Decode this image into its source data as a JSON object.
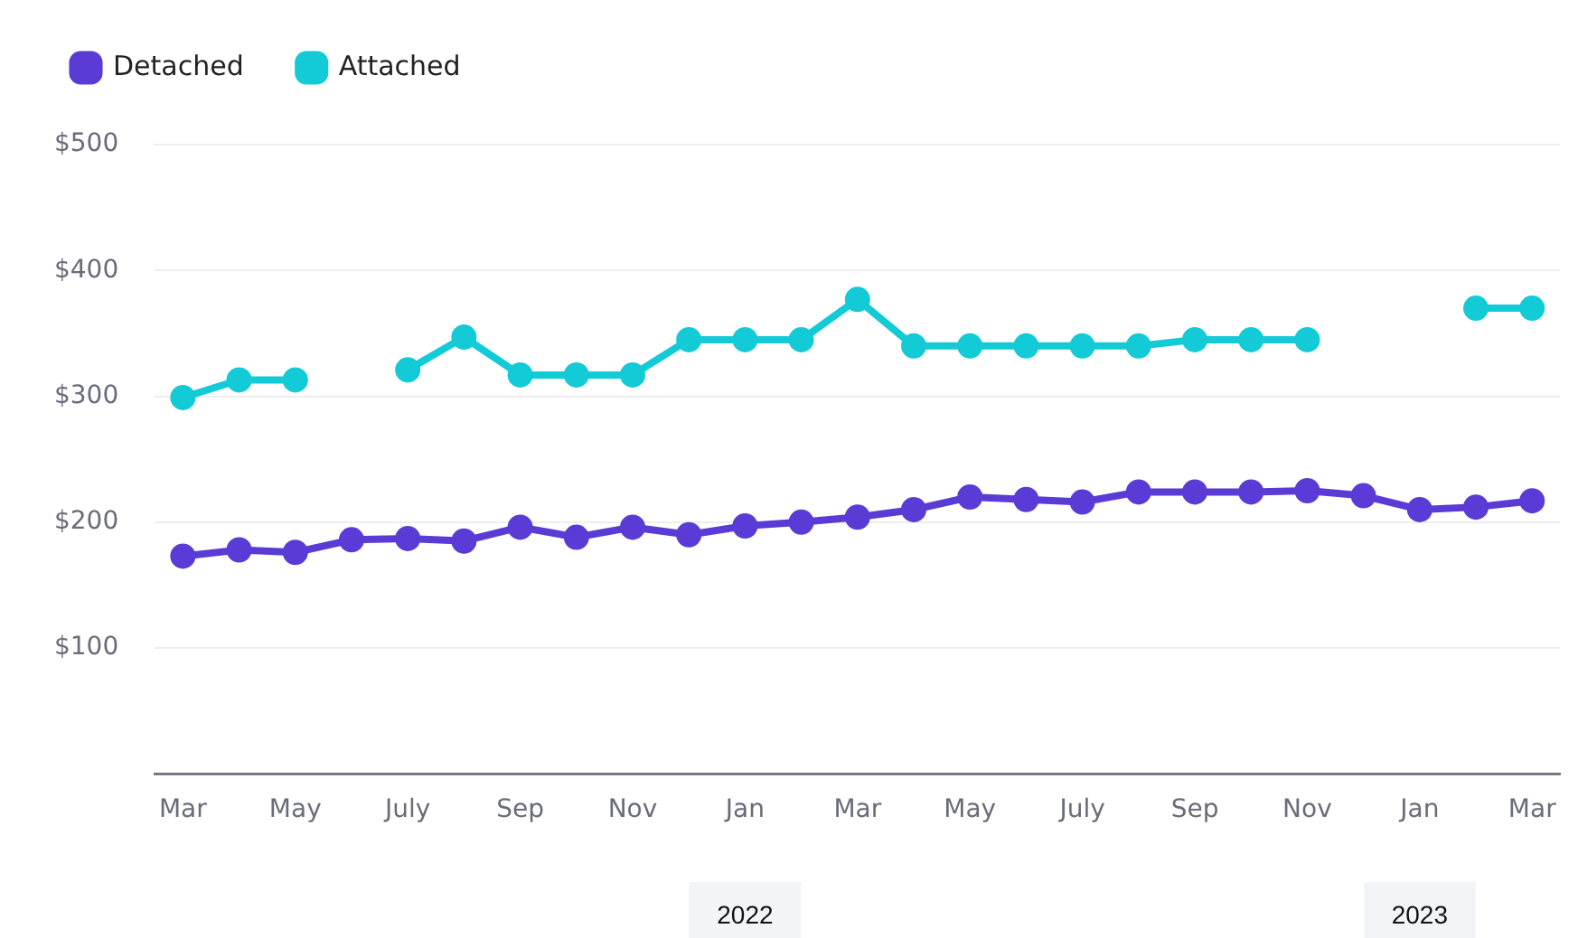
{
  "chart_data": {
    "type": "line",
    "x": [
      "2021-03",
      "2021-04",
      "2021-05",
      "2021-06",
      "2021-07",
      "2021-08",
      "2021-09",
      "2021-10",
      "2021-11",
      "2021-12",
      "2022-01",
      "2022-02",
      "2022-03",
      "2022-04",
      "2022-05",
      "2022-06",
      "2022-07",
      "2022-08",
      "2022-09",
      "2022-10",
      "2022-11",
      "2022-12",
      "2023-01",
      "2023-02",
      "2023-03"
    ],
    "series": [
      {
        "name": "Detached",
        "color": "#5b3bd6",
        "values": [
          173,
          178,
          176,
          186,
          187,
          185,
          196,
          188,
          196,
          190,
          197,
          200,
          204,
          210,
          220,
          218,
          216,
          224,
          224,
          224,
          225,
          221,
          210,
          212,
          217
        ]
      },
      {
        "name": "Attached",
        "color": "#13cbd6",
        "values": [
          299,
          313,
          313,
          null,
          321,
          347,
          317,
          317,
          317,
          345,
          345,
          345,
          377,
          340,
          340,
          340,
          340,
          340,
          345,
          345,
          345,
          null,
          null,
          370,
          370
        ]
      }
    ],
    "xlim": [
      "2021-02-16",
      "2023-03-16"
    ],
    "xticks": [
      {
        "value": "2021-03",
        "label": "Mar"
      },
      {
        "value": "2021-05",
        "label": "May"
      },
      {
        "value": "2021-07",
        "label": "July"
      },
      {
        "value": "2021-09",
        "label": "Sep"
      },
      {
        "value": "2021-11",
        "label": "Nov"
      },
      {
        "value": "2022-01",
        "label": "Jan"
      },
      {
        "value": "2022-03",
        "label": "Mar"
      },
      {
        "value": "2022-05",
        "label": "May"
      },
      {
        "value": "2022-07",
        "label": "July"
      },
      {
        "value": "2022-09",
        "label": "Sep"
      },
      {
        "value": "2022-11",
        "label": "Nov"
      },
      {
        "value": "2023-01",
        "label": "Jan"
      },
      {
        "value": "2023-03",
        "label": "Mar"
      }
    ],
    "ylim": [
      0,
      500
    ],
    "yticks": [
      {
        "value": 100,
        "label": "$100"
      },
      {
        "value": 200,
        "label": "$200"
      },
      {
        "value": 300,
        "label": "$300"
      },
      {
        "value": 400,
        "label": "$400"
      },
      {
        "value": 500,
        "label": "$500"
      }
    ],
    "annotations": [
      "2022",
      "2023"
    ],
    "grid": "y",
    "legend": "top left",
    "marker": "circle",
    "line_style": "solid"
  }
}
